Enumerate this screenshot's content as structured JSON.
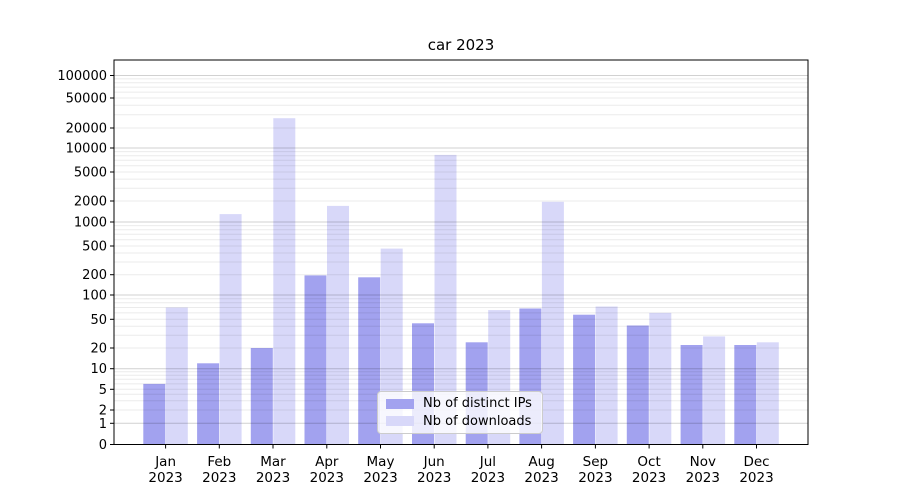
{
  "title": "car 2023",
  "chart_data": {
    "type": "bar",
    "title": "car 2023",
    "subtitle": "",
    "xlabel": "",
    "ylabel": "",
    "yscale": "symlog",
    "grid": "horizontal major and minor gridlines on",
    "legend_position": "lower center",
    "ylim": [
      0,
      200000
    ],
    "ytick_labels": [
      "0",
      "1",
      "2",
      "5",
      "10",
      "20",
      "50",
      "100",
      "200",
      "500",
      "1000",
      "2000",
      "5000",
      "10000",
      "20000",
      "50000",
      "100000"
    ],
    "ytick_values": [
      0,
      1,
      2,
      5,
      10,
      20,
      50,
      100,
      200,
      500,
      1000,
      2000,
      5000,
      10000,
      20000,
      50000,
      100000
    ],
    "categories": [
      {
        "month": "Jan",
        "year": "2023"
      },
      {
        "month": "Feb",
        "year": "2023"
      },
      {
        "month": "Mar",
        "year": "2023"
      },
      {
        "month": "Apr",
        "year": "2023"
      },
      {
        "month": "May",
        "year": "2023"
      },
      {
        "month": "Jun",
        "year": "2023"
      },
      {
        "month": "Jul",
        "year": "2023"
      },
      {
        "month": "Aug",
        "year": "2023"
      },
      {
        "month": "Sep",
        "year": "2023"
      },
      {
        "month": "Oct",
        "year": "2023"
      },
      {
        "month": "Nov",
        "year": "2023"
      },
      {
        "month": "Dec",
        "year": "2023"
      }
    ],
    "series": [
      {
        "name": "Nb of distinct IPs",
        "color": "#a2a2ef",
        "values": [
          6,
          12,
          20,
          195,
          183,
          44,
          24,
          68,
          57,
          41,
          22,
          22
        ]
      },
      {
        "name": "Nb of downloads",
        "color": "#d8d8f9",
        "values": [
          70,
          1300,
          27000,
          1700,
          460,
          8200,
          65,
          1950,
          72,
          60,
          29,
          24
        ]
      }
    ]
  }
}
